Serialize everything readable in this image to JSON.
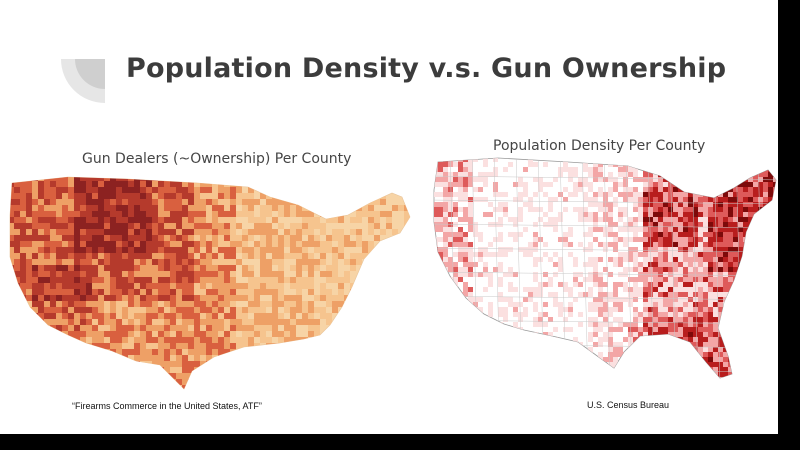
{
  "slide": {
    "title": "Population Density v.s. Gun Ownership"
  },
  "maps": {
    "left": {
      "title": "Gun Dealers (~Ownership) Per County",
      "source": "“Firearms Commerce in the United States, ATF”",
      "palette": [
        "#fbe6c6",
        "#f6c48e",
        "#eea066",
        "#d9603f",
        "#b53a2c",
        "#8c2221"
      ]
    },
    "right": {
      "title": "Population Density Per County",
      "source": "U.S. Census Bureau",
      "palette": [
        "#ffffff",
        "#fbe0e0",
        "#f3a6a6",
        "#de5a5a",
        "#b81d1d",
        "#7d0a0a"
      ]
    }
  },
  "icons": {
    "corner_decoration": "quarter-circle-decoration-icon"
  }
}
